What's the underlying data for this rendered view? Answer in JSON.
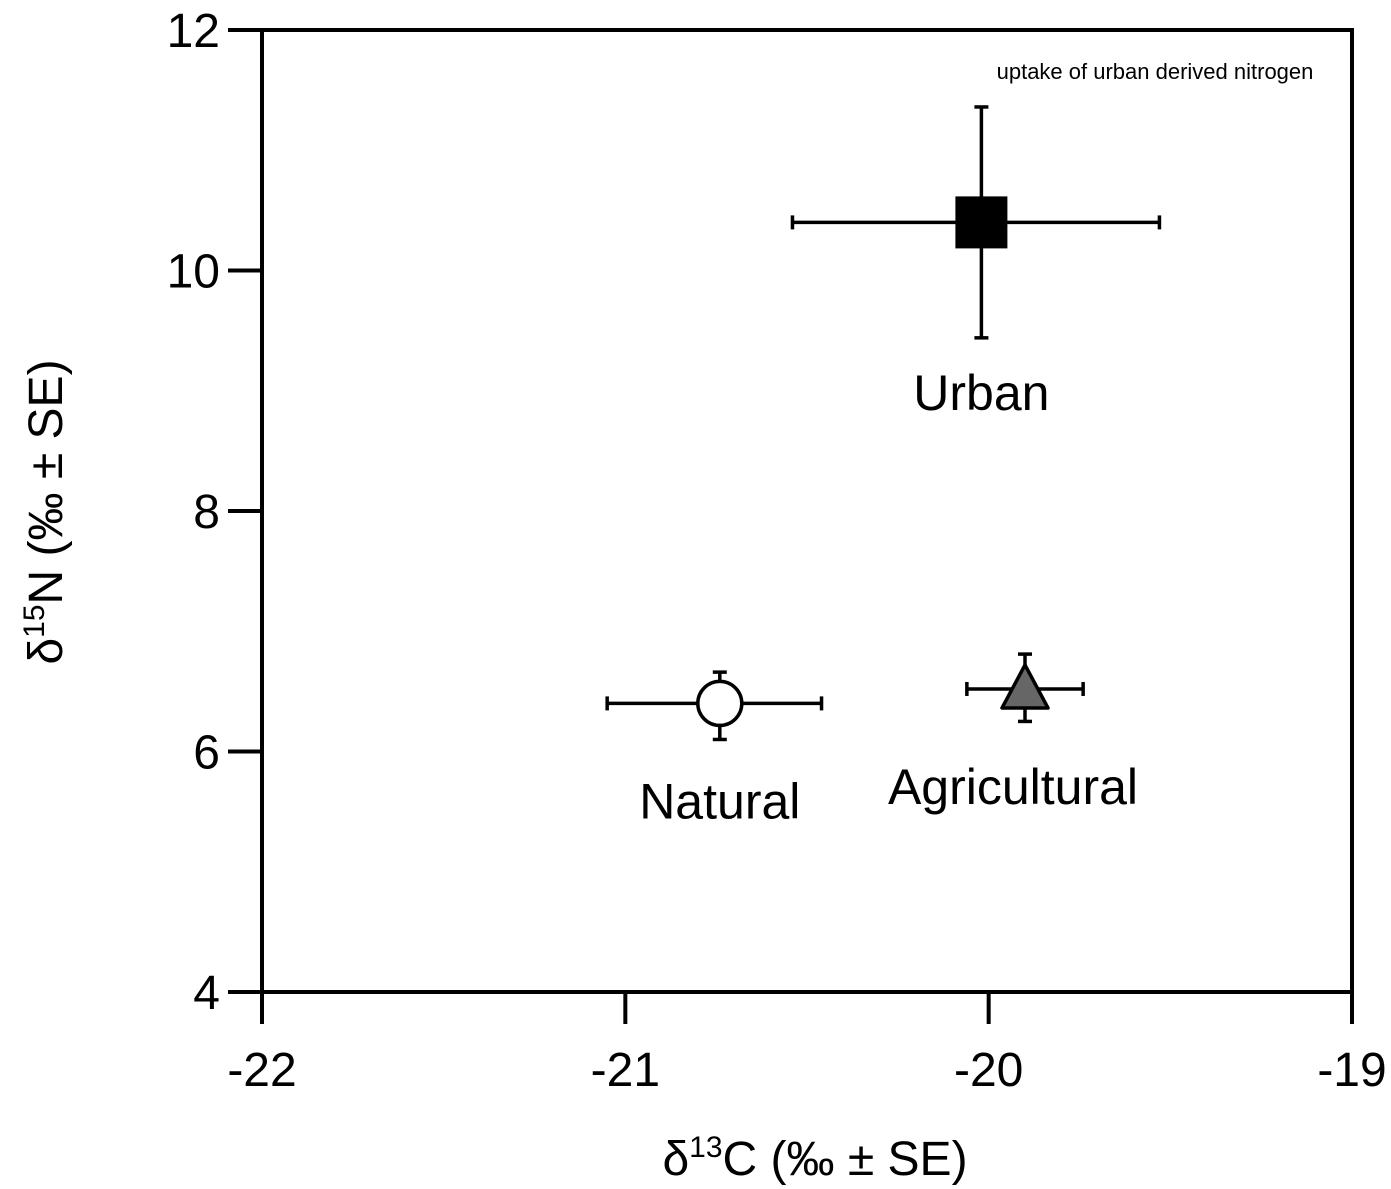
{
  "chart_data": {
    "type": "scatter",
    "title": "",
    "xlabel": {
      "prefix": "δ",
      "sup": "13",
      "suffix": "C (‰ ± SE)"
    },
    "ylabel": {
      "prefix": "δ",
      "sup": "15",
      "suffix": "N (‰ ± SE)"
    },
    "xlim": [
      -22,
      -19
    ],
    "ylim": [
      4,
      12
    ],
    "xticks": [
      -22,
      -21,
      -20,
      -19
    ],
    "yticks": [
      4,
      6,
      8,
      10,
      12
    ],
    "xtick_labels": [
      "-22",
      "-21",
      "-20",
      "-19"
    ],
    "ytick_labels": [
      "4",
      "6",
      "8",
      "10",
      "12"
    ],
    "grid": false,
    "legend": "none",
    "series": [
      {
        "name": "Urban",
        "marker": "square",
        "fill": "#000000",
        "x": -20.02,
        "y": 10.4,
        "xerr": [
          0.52,
          0.49
        ],
        "yerr": [
          0.96,
          0.96
        ]
      },
      {
        "name": "Natural",
        "marker": "circle",
        "fill": "#ffffff",
        "x": -20.74,
        "y": 6.4,
        "xerr": [
          0.31,
          0.28
        ],
        "yerr": [
          0.3,
          0.26
        ]
      },
      {
        "name": "Agricultural",
        "marker": "triangle",
        "fill": "#666666",
        "x": -19.9,
        "y": 6.52,
        "xerr": [
          0.16,
          0.16
        ],
        "yerr": [
          0.27,
          0.29
        ]
      }
    ],
    "annotations": [
      {
        "text": "uptake of urban derived nitrogen",
        "x": -19.56,
        "y": 11.67
      }
    ]
  }
}
